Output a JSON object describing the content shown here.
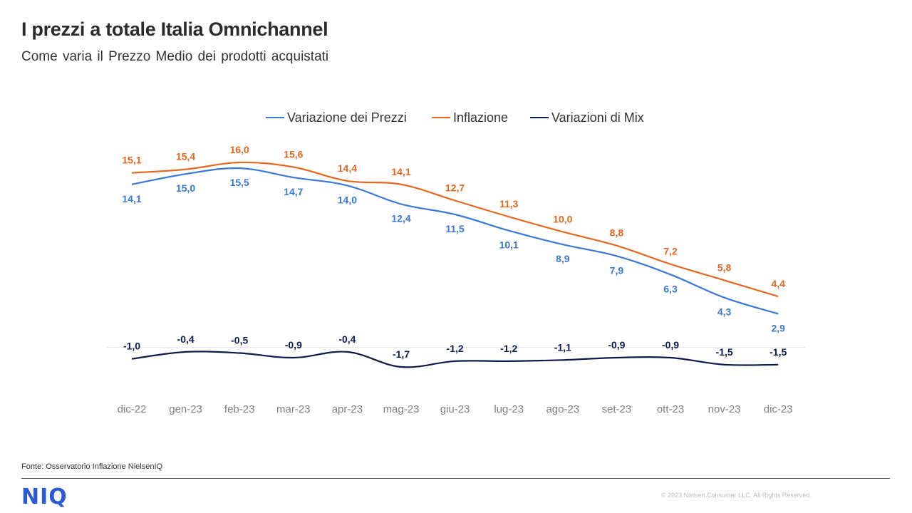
{
  "page": {
    "title": "I prezzi a totale Italia Omnichannel",
    "subtitle": "Come varia il Prezzo  Medio dei prodotti acquistati",
    "source": "Fonte: Osservatorio Inflazione NielsenIQ",
    "logo": "NIQ",
    "copyright": "© 2023  Nielsen Consumer LLC. All Rights Reserved."
  },
  "chart_data": {
    "type": "line",
    "title": "",
    "xlabel": "",
    "ylabel": "",
    "grid": false,
    "legend_position": "top-center",
    "categories": [
      "dic-22",
      "gen-23",
      "feb-23",
      "mar-23",
      "apr-23",
      "mag-23",
      "giu-23",
      "lug-23",
      "ago-23",
      "set-23",
      "ott-23",
      "nov-23",
      "dic-23"
    ],
    "series": [
      {
        "name": "Variazione dei Prezzi",
        "color": "#3a78d8",
        "values": [
          14.1,
          15.0,
          15.5,
          14.7,
          14.0,
          12.4,
          11.5,
          10.1,
          8.9,
          7.9,
          6.3,
          4.3,
          2.9
        ],
        "labels": [
          "14,1",
          "15,0",
          "15,5",
          "14,7",
          "14,0",
          "12,4",
          "11,5",
          "10,1",
          "8,9",
          "7,9",
          "6,3",
          "4,3",
          "2,9"
        ],
        "label_side": "below"
      },
      {
        "name": "Inflazione",
        "color": "#e8671e",
        "values": [
          15.1,
          15.4,
          16.0,
          15.6,
          14.4,
          14.1,
          12.7,
          11.3,
          10.0,
          8.8,
          7.2,
          5.8,
          4.4
        ],
        "labels": [
          "15,1",
          "15,4",
          "16,0",
          "15,6",
          "14,4",
          "14,1",
          "12,7",
          "11,3",
          "10,0",
          "8,8",
          "7,2",
          "5,8",
          "4,4"
        ],
        "label_side": "above"
      },
      {
        "name": "Variazioni di Mix",
        "color": "#0d1b4c",
        "values": [
          -1.0,
          -0.4,
          -0.5,
          -0.9,
          -0.4,
          -1.7,
          -1.2,
          -1.2,
          -1.1,
          -0.9,
          -0.9,
          -1.5,
          -1.5
        ],
        "labels": [
          "-1,0",
          "-0,4",
          "-0,5",
          "-0,9",
          "-0,4",
          "-1,7",
          "-1,2",
          "-1,2",
          "-1,1",
          "-0,9",
          "-0,9",
          "-1,5",
          "-1,5"
        ],
        "label_side": "above"
      }
    ]
  }
}
